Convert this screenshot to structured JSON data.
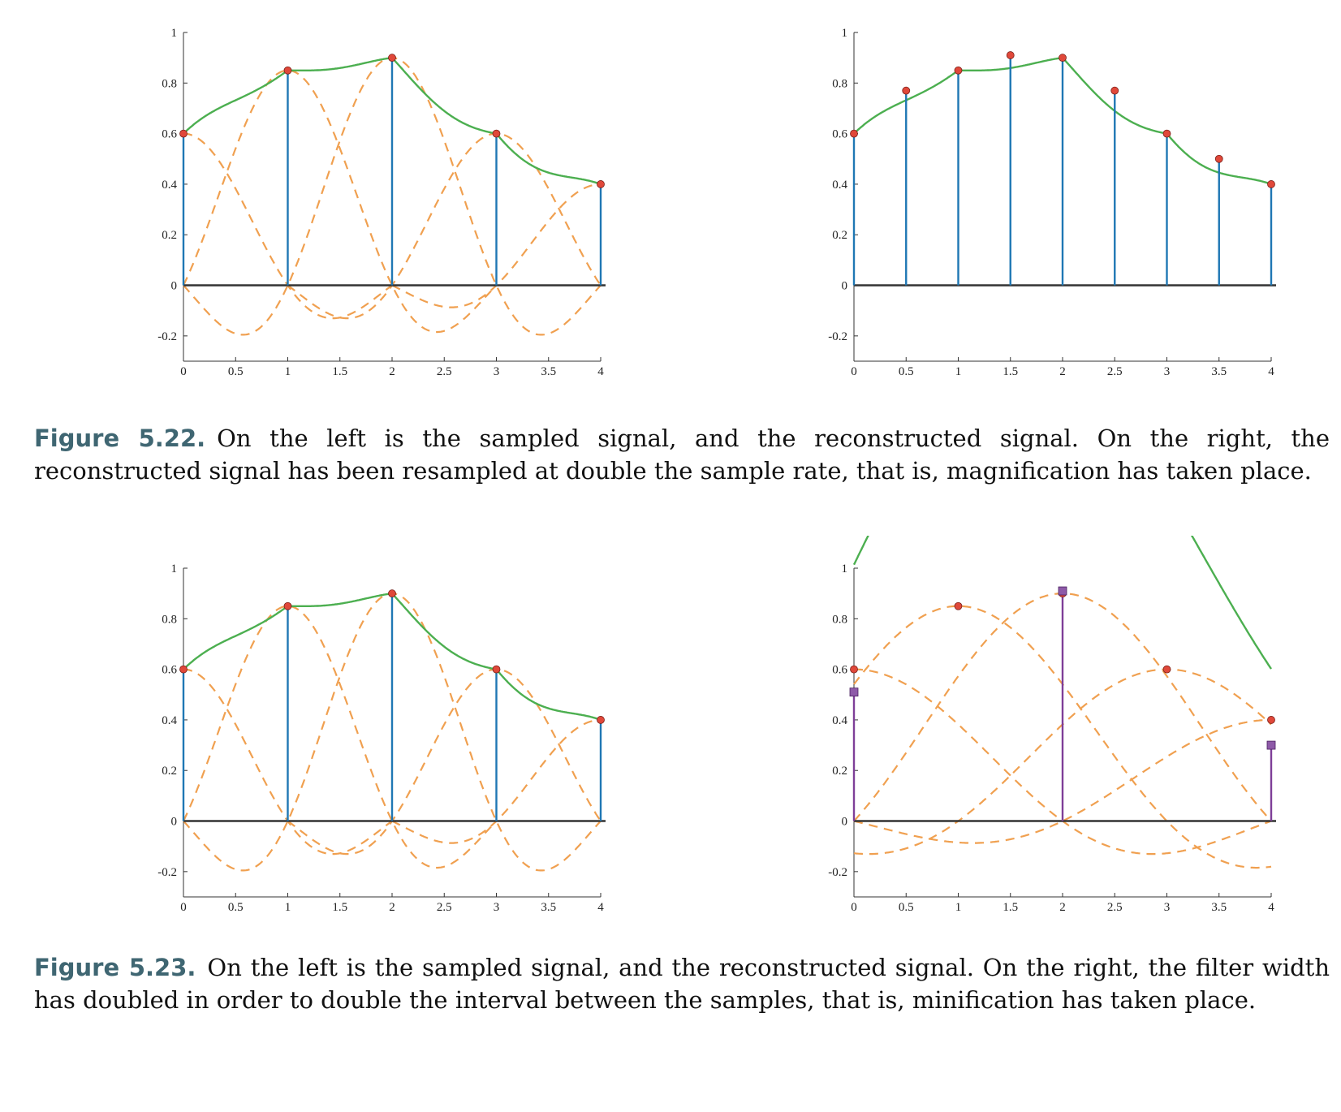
{
  "colors": {
    "stem": "#1f77b4",
    "minified_stem": "#7e3f98",
    "reconstruction": "#4caf50",
    "filter": "#f0a050",
    "sample_point": "#e0483a",
    "minified_point": "#8e5aa8",
    "axis": "#333333",
    "caption_label": "#3f6672"
  },
  "captions": {
    "fig22": {
      "label": "Figure 5.22.",
      "text": "On the left is the sampled signal, and the reconstructed signal. On the right, the reconstructed signal has been resampled at double the sample rate, that is, magnification has taken place."
    },
    "fig23": {
      "label": "Figure 5.23.",
      "text": "On the left is the sampled signal, and the reconstructed signal. On the right, the filter width has doubled in order to double the interval between the samples, that is, minification has taken place."
    }
  },
  "chart_data": [
    {
      "id": "fig22-left",
      "type": "line",
      "title": "",
      "xlabel": "",
      "ylabel": "",
      "xlim": [
        0,
        4
      ],
      "ylim": [
        -0.3,
        1
      ],
      "xticks": [
        "0",
        "0.5",
        "1",
        "1.5",
        "2",
        "2.5",
        "3",
        "3.5",
        "4"
      ],
      "yticks": [
        "-0.2",
        "0",
        "0.2",
        "0.4",
        "0.6",
        "0.8",
        "1"
      ],
      "samples": {
        "x": [
          0,
          1,
          2,
          3,
          4
        ],
        "y": [
          0.6,
          0.85,
          0.9,
          0.6,
          0.4
        ]
      },
      "filter_radius": 1,
      "filters": "sinc",
      "reconstruction": "sum",
      "grid": false
    },
    {
      "id": "fig22-right",
      "type": "line",
      "title": "",
      "xlabel": "",
      "ylabel": "",
      "xlim": [
        0,
        4
      ],
      "ylim": [
        -0.3,
        1
      ],
      "xticks": [
        "0",
        "0.5",
        "1",
        "1.5",
        "2",
        "2.5",
        "3",
        "3.5",
        "4"
      ],
      "yticks": [
        "-0.2",
        "0",
        "0.2",
        "0.4",
        "0.6",
        "0.8",
        "1"
      ],
      "base_samples": {
        "x": [
          0,
          1,
          2,
          3,
          4
        ],
        "y": [
          0.6,
          0.85,
          0.9,
          0.6,
          0.4
        ]
      },
      "samples": {
        "x": [
          0,
          0.5,
          1,
          1.5,
          2,
          2.5,
          3,
          3.5,
          4
        ],
        "y": [
          0.6,
          0.77,
          0.85,
          0.91,
          0.9,
          0.77,
          0.6,
          0.5,
          0.4
        ]
      },
      "filter_radius": 1,
      "reconstruction": "sum",
      "grid": false
    },
    {
      "id": "fig23-left",
      "type": "line",
      "title": "",
      "xlabel": "",
      "ylabel": "",
      "xlim": [
        0,
        4
      ],
      "ylim": [
        -0.3,
        1
      ],
      "xticks": [
        "0",
        "0.5",
        "1",
        "1.5",
        "2",
        "2.5",
        "3",
        "3.5",
        "4"
      ],
      "yticks": [
        "-0.2",
        "0",
        "0.2",
        "0.4",
        "0.6",
        "0.8",
        "1"
      ],
      "samples": {
        "x": [
          0,
          1,
          2,
          3,
          4
        ],
        "y": [
          0.6,
          0.85,
          0.9,
          0.6,
          0.4
        ]
      },
      "filter_radius": 1,
      "filters": "sinc",
      "reconstruction": "sum",
      "grid": false
    },
    {
      "id": "fig23-right",
      "type": "line",
      "title": "",
      "xlabel": "",
      "ylabel": "",
      "xlim": [
        0,
        4
      ],
      "ylim": [
        -0.3,
        1
      ],
      "xticks": [
        "0",
        "0.5",
        "1",
        "1.5",
        "2",
        "2.5",
        "3",
        "3.5",
        "4"
      ],
      "yticks": [
        "-0.2",
        "0",
        "0.2",
        "0.4",
        "0.6",
        "0.8",
        "1"
      ],
      "samples": {
        "x": [
          0,
          1,
          2,
          3,
          4
        ],
        "y": [
          0.6,
          0.85,
          0.9,
          0.6,
          0.4
        ]
      },
      "filter_radius": 2,
      "filters": "sinc",
      "reconstruction": "sum",
      "minified_samples": {
        "x": [
          0,
          2,
          4
        ],
        "y": [
          0.51,
          0.91,
          0.3
        ]
      },
      "grid": false
    }
  ]
}
